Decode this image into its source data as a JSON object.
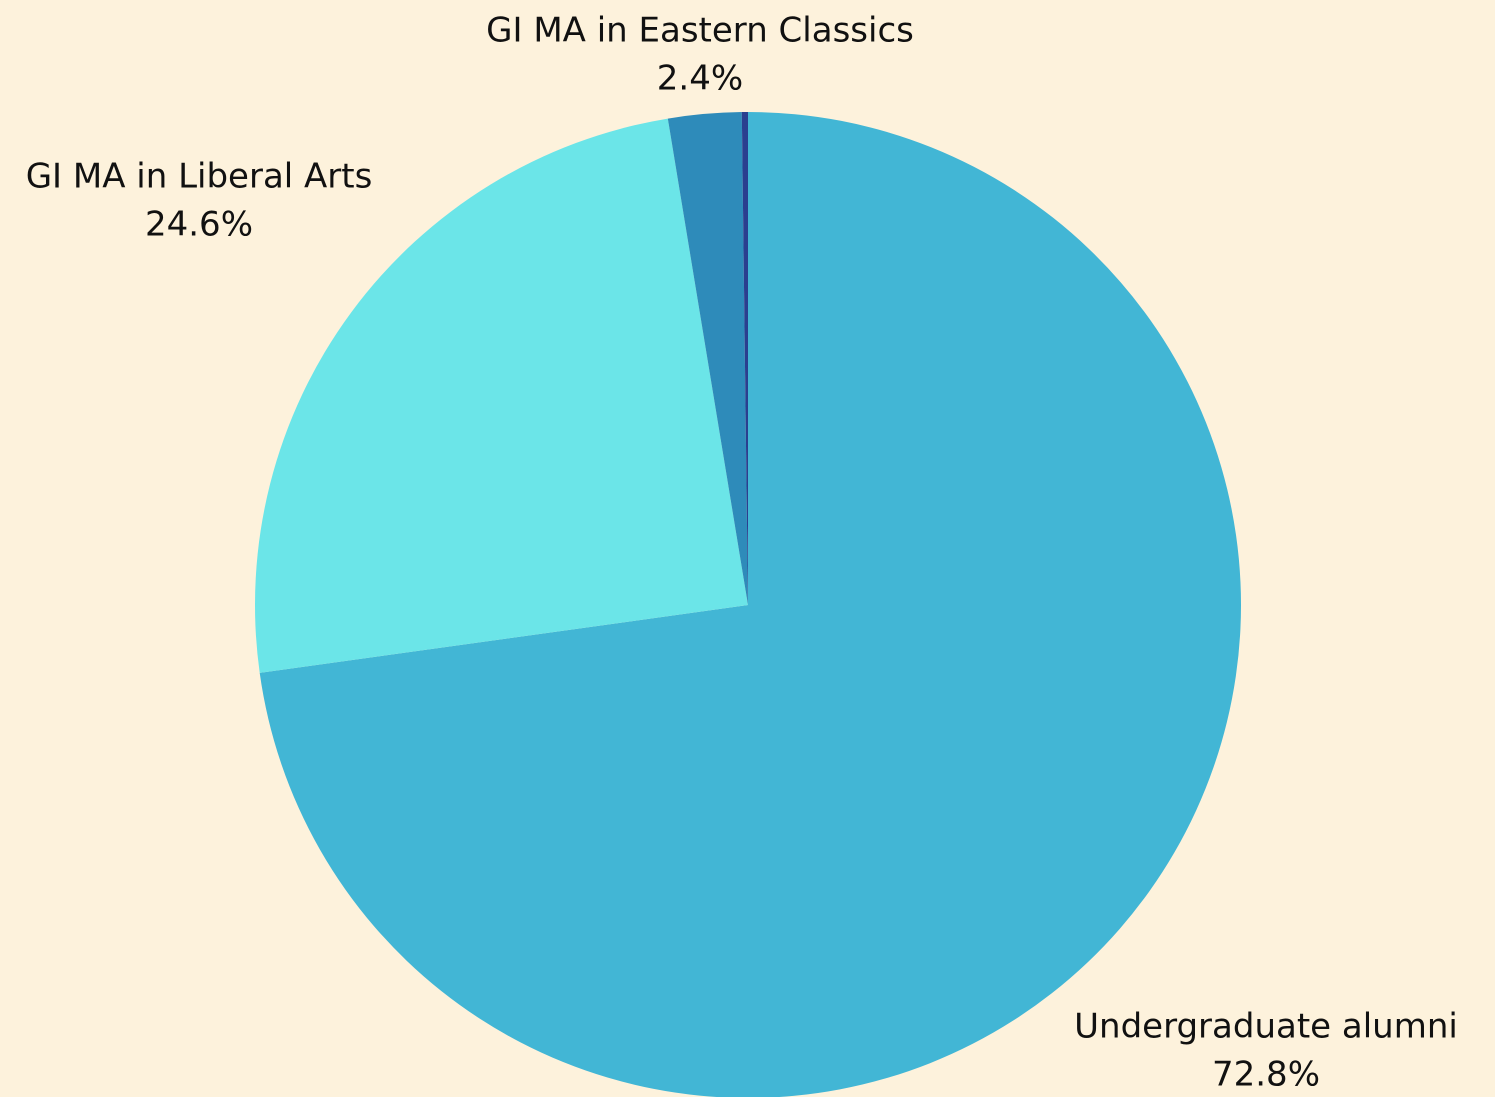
{
  "chart_data": {
    "type": "pie",
    "categories": [
      "Undergraduate alumni",
      "GI MA in Liberal Arts",
      "GI MA in Eastern Classics",
      null
    ],
    "values": [
      72.8,
      24.6,
      2.4,
      0.2
    ],
    "value_labels": [
      "72.8%",
      "24.6%",
      "2.4%",
      null
    ],
    "colors": [
      "#42b6d5",
      "#6be5e8",
      "#2e8bba",
      "#2a3f8f"
    ]
  }
}
